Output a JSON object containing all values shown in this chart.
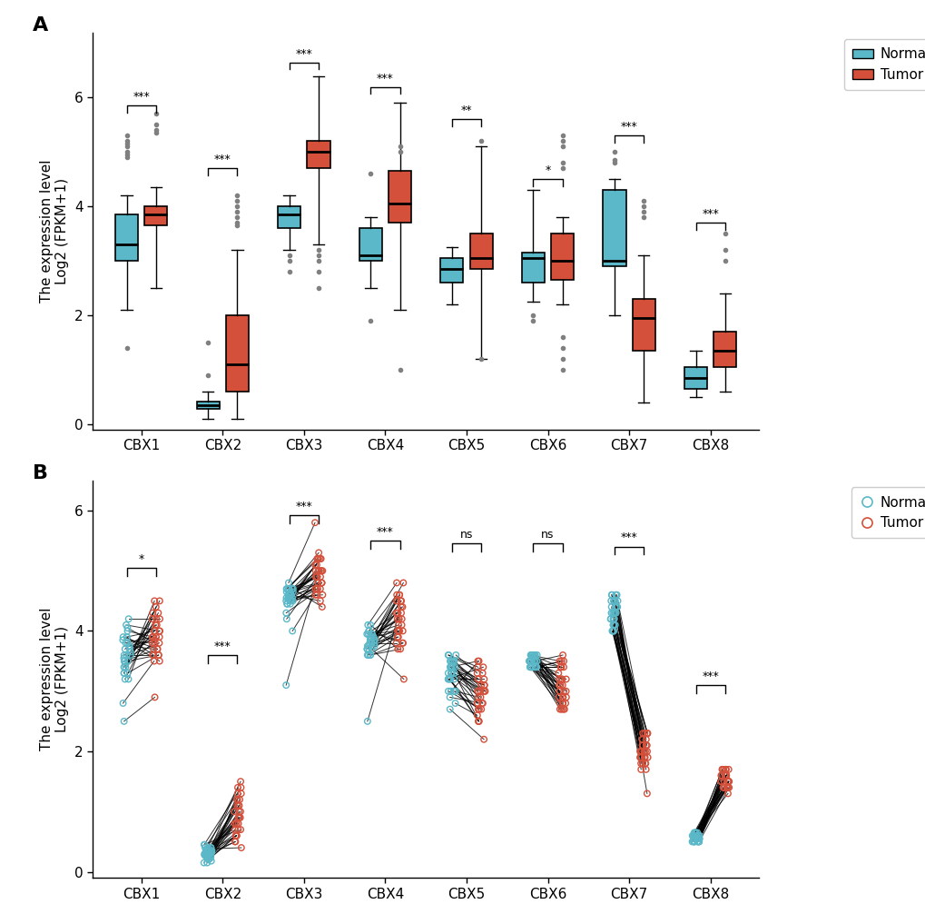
{
  "genes": [
    "CBX1",
    "CBX2",
    "CBX3",
    "CBX4",
    "CBX5",
    "CBX6",
    "CBX7",
    "CBX8"
  ],
  "normal_color": "#5BB8C8",
  "tumor_color": "#D4503A",
  "background_color": "#FFFFFF",
  "ylabel": "The expression level\nLog2 (FPKM+1)",
  "yticks": [
    0,
    2,
    4,
    6
  ],
  "panel_a": {
    "normal_boxes": [
      {
        "q1": 3.0,
        "median": 3.3,
        "q3": 3.85,
        "whislo": 2.1,
        "whishi": 4.2,
        "fliers": [
          1.4,
          5.2,
          5.3,
          5.0,
          4.95,
          4.9,
          5.1,
          5.15
        ]
      },
      {
        "q1": 0.28,
        "median": 0.35,
        "q3": 0.42,
        "whislo": 0.1,
        "whishi": 0.6,
        "fliers": [
          1.5,
          0.9
        ]
      },
      {
        "q1": 3.6,
        "median": 3.85,
        "q3": 4.0,
        "whislo": 3.2,
        "whishi": 4.2,
        "fliers": [
          3.0,
          2.8,
          3.1
        ]
      },
      {
        "q1": 3.0,
        "median": 3.1,
        "q3": 3.6,
        "whislo": 2.5,
        "whishi": 3.8,
        "fliers": [
          4.6,
          1.9
        ]
      },
      {
        "q1": 2.6,
        "median": 2.85,
        "q3": 3.05,
        "whislo": 2.2,
        "whishi": 3.25,
        "fliers": []
      },
      {
        "q1": 2.6,
        "median": 3.05,
        "q3": 3.15,
        "whislo": 2.25,
        "whishi": 4.3,
        "fliers": [
          2.0,
          1.9
        ]
      },
      {
        "q1": 2.9,
        "median": 3.0,
        "q3": 4.3,
        "whislo": 2.0,
        "whishi": 4.5,
        "fliers": [
          5.0,
          4.8,
          4.85
        ]
      },
      {
        "q1": 0.65,
        "median": 0.85,
        "q3": 1.05,
        "whislo": 0.5,
        "whishi": 1.35,
        "fliers": []
      }
    ],
    "tumor_boxes": [
      {
        "q1": 3.65,
        "median": 3.85,
        "q3": 4.0,
        "whislo": 2.5,
        "whishi": 4.35,
        "fliers": [
          5.7,
          5.5,
          5.4,
          5.35
        ]
      },
      {
        "q1": 0.6,
        "median": 1.1,
        "q3": 2.0,
        "whislo": 0.1,
        "whishi": 3.2,
        "fliers": [
          4.2,
          4.0,
          3.8,
          4.1,
          3.7,
          3.65,
          3.9
        ]
      },
      {
        "q1": 4.7,
        "median": 5.0,
        "q3": 5.2,
        "whislo": 3.3,
        "whishi": 6.4,
        "fliers": [
          3.2,
          3.0,
          2.8,
          2.5,
          3.1
        ]
      },
      {
        "q1": 3.7,
        "median": 4.05,
        "q3": 4.65,
        "whislo": 2.1,
        "whishi": 5.9,
        "fliers": [
          1.0,
          5.0,
          5.1
        ]
      },
      {
        "q1": 2.85,
        "median": 3.05,
        "q3": 3.5,
        "whislo": 1.2,
        "whishi": 5.1,
        "fliers": [
          1.2,
          5.2
        ]
      },
      {
        "q1": 2.65,
        "median": 3.0,
        "q3": 3.5,
        "whislo": 2.2,
        "whishi": 3.8,
        "fliers": [
          4.8,
          4.7,
          5.2,
          5.1,
          5.3,
          1.6,
          1.4,
          1.2,
          1.0
        ]
      },
      {
        "q1": 1.35,
        "median": 1.95,
        "q3": 2.3,
        "whislo": 0.4,
        "whishi": 3.1,
        "fliers": [
          4.0,
          3.9,
          3.8,
          4.1
        ]
      },
      {
        "q1": 1.05,
        "median": 1.35,
        "q3": 1.7,
        "whislo": 0.6,
        "whishi": 2.4,
        "fliers": [
          3.2,
          3.0,
          3.5
        ]
      }
    ],
    "significance": [
      "***",
      "***",
      "***",
      "***",
      "**",
      "*",
      "***",
      "***"
    ],
    "sig_heights": [
      5.85,
      4.7,
      6.65,
      6.2,
      5.6,
      4.5,
      5.3,
      3.7
    ]
  },
  "panel_b": {
    "significance": [
      "*",
      "***",
      "***",
      "***",
      "ns",
      "ns",
      "***",
      "***"
    ],
    "sig_heights": [
      5.05,
      3.6,
      5.92,
      5.5,
      5.45,
      5.45,
      5.4,
      3.1
    ],
    "normal_data": [
      [
        3.8,
        3.6,
        4.2,
        3.5,
        3.4,
        3.3,
        3.9,
        3.7,
        4.0,
        3.2,
        3.85,
        3.65,
        3.75,
        3.5,
        3.3,
        3.6,
        3.45,
        3.9,
        4.1,
        3.2,
        3.8,
        3.55,
        3.7,
        3.4,
        3.6,
        3.75,
        3.5,
        3.9,
        4.05,
        2.8,
        3.3,
        2.5
      ],
      [
        0.3,
        0.25,
        0.4,
        0.35,
        0.28,
        0.32,
        0.38,
        0.3,
        0.45,
        0.22,
        0.15,
        0.3,
        0.35,
        0.28,
        0.4,
        0.26,
        0.33,
        0.38,
        0.3,
        0.25,
        0.4,
        0.35,
        0.28,
        0.32,
        0.38,
        0.3,
        0.45,
        0.18,
        0.25,
        0.3,
        0.15,
        0.2
      ],
      [
        4.7,
        4.5,
        4.6,
        4.55,
        4.6,
        4.45,
        4.7,
        4.8,
        4.6,
        4.5,
        4.65,
        4.7,
        4.55,
        4.3,
        4.45,
        4.7,
        4.5,
        4.0,
        4.65,
        4.7,
        4.5,
        4.55,
        4.6,
        4.7,
        4.45,
        4.6,
        4.55,
        4.7,
        4.5,
        4.65,
        4.2,
        3.1
      ],
      [
        3.8,
        3.9,
        4.0,
        3.7,
        3.85,
        3.6,
        3.95,
        4.1,
        3.75,
        3.8,
        3.9,
        3.7,
        3.85,
        3.6,
        3.95,
        4.0,
        3.75,
        3.8,
        3.9,
        3.7,
        3.85,
        3.6,
        3.95,
        4.1,
        3.75,
        3.8,
        3.9,
        3.7,
        3.85,
        3.6,
        3.95,
        2.5
      ],
      [
        3.3,
        3.5,
        2.9,
        3.2,
        3.4,
        3.0,
        3.6,
        3.3,
        2.8,
        3.4,
        3.5,
        3.2,
        3.3,
        3.0,
        3.4,
        3.2,
        3.6,
        3.5,
        3.3,
        3.4,
        3.2,
        3.5,
        3.3,
        3.0,
        2.7,
        3.6,
        3.4,
        3.5,
        3.2,
        3.3,
        3.0,
        3.4
      ],
      [
        3.5,
        3.6,
        3.4,
        3.5,
        3.6,
        3.4,
        3.5,
        3.6,
        3.5,
        3.4,
        3.6,
        3.5,
        3.4,
        3.6,
        3.5,
        3.4,
        3.6,
        3.5,
        3.4,
        3.6,
        3.5,
        3.4,
        3.6,
        3.5,
        3.4,
        3.6,
        3.5,
        3.4,
        3.6,
        3.5,
        3.4,
        3.6
      ],
      [
        4.2,
        4.5,
        4.0,
        4.3,
        4.6,
        4.1,
        4.4,
        4.2,
        4.5,
        4.0,
        4.3,
        4.6,
        4.1,
        4.4,
        4.2,
        4.5,
        4.0,
        4.3,
        4.6,
        4.1,
        4.4,
        4.2,
        4.5,
        4.0,
        4.3,
        4.6,
        4.1,
        4.4,
        4.2,
        4.5,
        4.0,
        4.3
      ],
      [
        0.5,
        0.6,
        0.55,
        0.5,
        0.65,
        0.6,
        0.55,
        0.5,
        0.6,
        0.55,
        0.5,
        0.65,
        0.6,
        0.55,
        0.5,
        0.6,
        0.55,
        0.5,
        0.65,
        0.6,
        0.55,
        0.5,
        0.6,
        0.55,
        0.5,
        0.65,
        0.6,
        0.55,
        0.5,
        0.6,
        0.55,
        0.5
      ]
    ],
    "tumor_data": [
      [
        3.9,
        4.5,
        4.2,
        3.6,
        4.0,
        4.3,
        3.7,
        4.1,
        3.9,
        4.4,
        3.8,
        4.0,
        3.85,
        3.7,
        4.5,
        3.9,
        4.2,
        3.6,
        4.0,
        4.3,
        3.5,
        3.8,
        4.1,
        3.9,
        3.6,
        3.7,
        4.2,
        4.0,
        3.8,
        3.5,
        3.6,
        2.9
      ],
      [
        1.1,
        0.9,
        1.3,
        1.5,
        0.7,
        1.2,
        1.0,
        0.8,
        1.4,
        0.6,
        0.9,
        1.1,
        0.8,
        0.5,
        1.0,
        0.7,
        0.6,
        0.4,
        0.9,
        1.2,
        1.4,
        0.8,
        1.1,
        0.6,
        0.9,
        1.0,
        0.7,
        1.3,
        0.5,
        0.8,
        1.2,
        0.6
      ],
      [
        4.9,
        4.8,
        5.2,
        4.6,
        5.0,
        4.7,
        5.3,
        5.8,
        4.5,
        5.1,
        4.8,
        4.9,
        5.0,
        4.7,
        5.2,
        4.4,
        4.8,
        4.6,
        5.0,
        5.2,
        4.7,
        4.9,
        5.0,
        5.1,
        4.8,
        4.7,
        5.0,
        5.2,
        4.6,
        4.8,
        4.9,
        5.0
      ],
      [
        4.5,
        4.2,
        3.8,
        4.0,
        4.6,
        3.7,
        4.3,
        4.8,
        4.1,
        3.9,
        4.4,
        4.0,
        4.5,
        3.8,
        4.2,
        4.6,
        4.0,
        3.8,
        4.2,
        4.5,
        4.8,
        4.3,
        4.0,
        3.7,
        3.2,
        4.5,
        4.0,
        4.3,
        4.6,
        3.9,
        4.1,
        4.4
      ],
      [
        2.5,
        3.0,
        2.8,
        3.2,
        3.5,
        2.9,
        3.3,
        3.0,
        2.6,
        3.1,
        2.8,
        3.4,
        3.0,
        2.7,
        3.2,
        2.5,
        3.4,
        3.1,
        2.8,
        3.0,
        2.7,
        3.2,
        2.9,
        3.5,
        2.2,
        3.3,
        3.0,
        2.8,
        2.5,
        3.1,
        2.7,
        3.0
      ],
      [
        3.3,
        2.8,
        3.5,
        3.0,
        2.7,
        3.4,
        3.2,
        2.9,
        3.6,
        3.1,
        2.8,
        3.4,
        3.0,
        2.7,
        3.2,
        2.9,
        3.5,
        3.1,
        2.8,
        3.4,
        3.0,
        2.7,
        3.2,
        2.9,
        3.5,
        3.1,
        2.8,
        3.4,
        3.0,
        2.7,
        3.2,
        2.9
      ],
      [
        2.0,
        2.2,
        1.9,
        2.3,
        1.8,
        2.1,
        2.0,
        1.7,
        2.2,
        1.9,
        2.3,
        2.0,
        1.7,
        2.2,
        1.9,
        2.0,
        1.8,
        2.3,
        2.1,
        1.9,
        2.0,
        1.8,
        2.3,
        1.9,
        2.1,
        2.0,
        1.8,
        2.3,
        1.9,
        2.1,
        2.0,
        1.3
      ],
      [
        1.4,
        1.6,
        1.5,
        1.7,
        1.3,
        1.5,
        1.6,
        1.4,
        1.7,
        1.5,
        1.6,
        1.4,
        1.7,
        1.5,
        1.6,
        1.4,
        1.7,
        1.5,
        1.6,
        1.4,
        1.7,
        1.5,
        1.6,
        1.4,
        1.7,
        1.5,
        1.6,
        1.4,
        1.7,
        1.5,
        1.6,
        1.4
      ]
    ]
  }
}
